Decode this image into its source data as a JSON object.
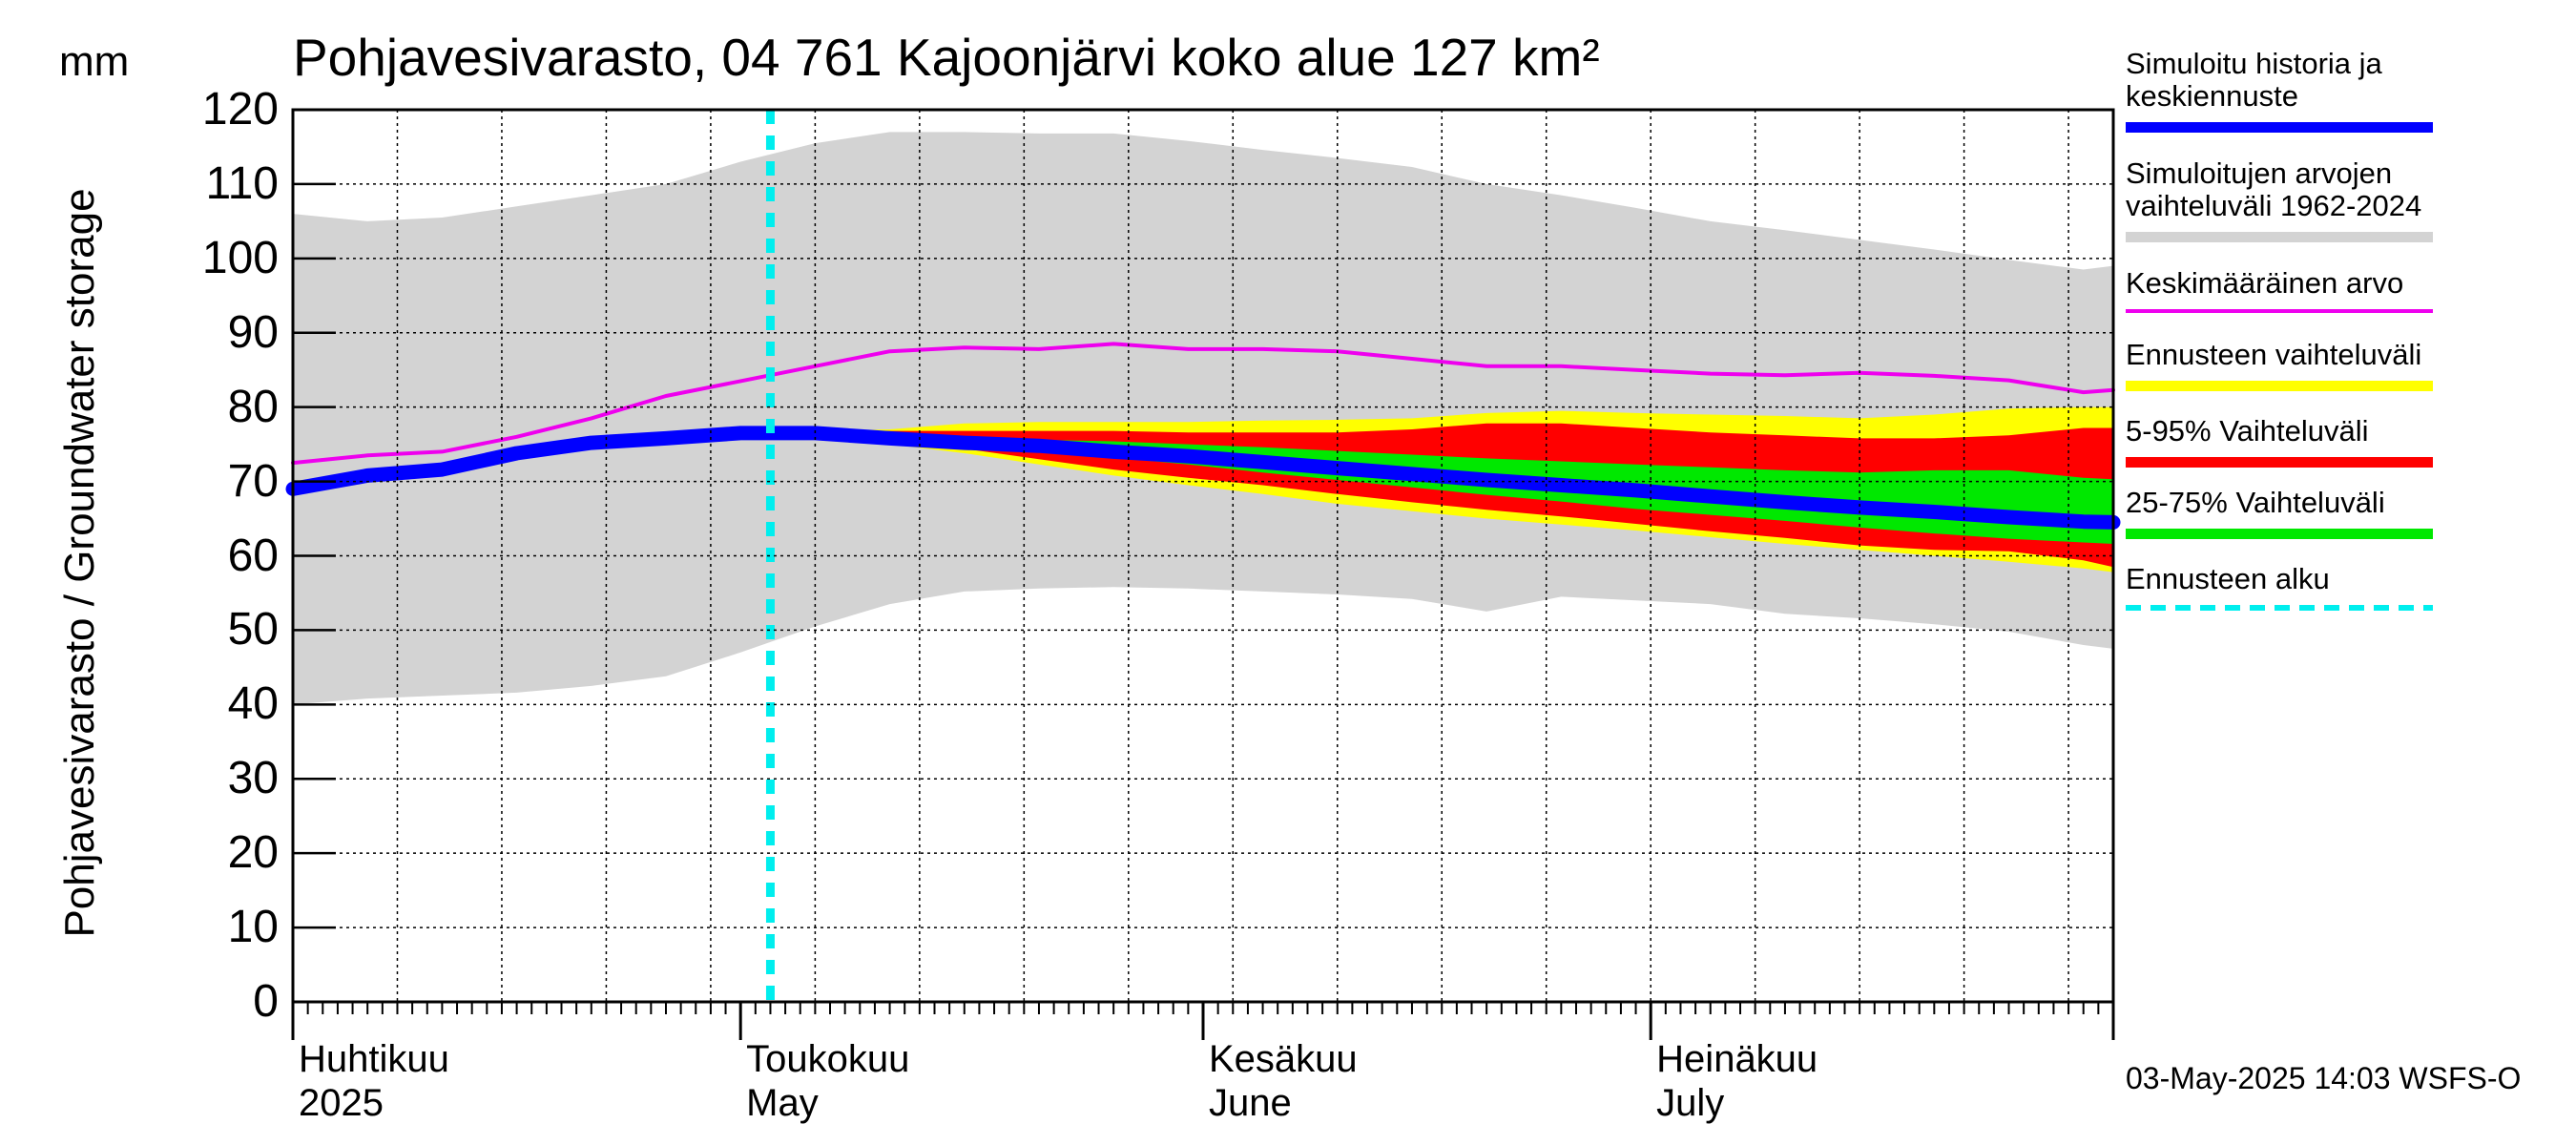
{
  "title": "Pohjavesivarasto, 04 761 Kajoonjärvi koko alue 127 km²",
  "unit": "mm",
  "timestamp": "03-May-2025 14:03 WSFS-O",
  "chart_data": {
    "type": "area",
    "ylabel": "Pohjavesivarasto / Groundwater storage",
    "ylim": [
      0,
      120
    ],
    "yticks": [
      0,
      10,
      20,
      30,
      40,
      50,
      60,
      70,
      80,
      90,
      100,
      110,
      120
    ],
    "xlim": [
      "2025-04-01",
      "2025-08-01"
    ],
    "grid": true,
    "legend_position": "right",
    "month_labels": [
      {
        "date": "2025-04-01",
        "line1": "Huhtikuu",
        "line2": "2025"
      },
      {
        "date": "2025-05-01",
        "line1": "Toukokuu",
        "line2": "May"
      },
      {
        "date": "2025-06-01",
        "line1": "Kesäkuu",
        "line2": "June"
      },
      {
        "date": "2025-07-01",
        "line1": "Heinäkuu",
        "line2": "July"
      }
    ],
    "forecast_start": "2025-05-03",
    "colors": {
      "history_range": "#d3d3d3",
      "forecast_range": "#ffff00",
      "p5_95": "#ff0000",
      "p25_75": "#00e800",
      "mean": "#ee00ee",
      "history_forecast": "#0000ff",
      "forecast_start": "#00eeee",
      "grid": "#000000"
    },
    "series": [
      {
        "name": "Simuloitu historia ja\nkeskiennuste",
        "style": "line",
        "color": "#0000ff",
        "x": [
          "2025-04-01",
          "2025-04-06",
          "2025-04-11",
          "2025-04-16",
          "2025-04-21",
          "2025-04-26",
          "2025-05-01",
          "2025-05-06",
          "2025-05-11",
          "2025-05-16",
          "2025-05-21",
          "2025-05-26",
          "2025-05-31",
          "2025-06-05",
          "2025-06-10",
          "2025-06-15",
          "2025-06-20",
          "2025-06-25",
          "2025-06-30",
          "2025-07-05",
          "2025-07-10",
          "2025-07-15",
          "2025-07-20",
          "2025-07-25",
          "2025-07-30",
          "2025-08-01"
        ],
        "y": [
          69,
          70.8,
          71.6,
          73.8,
          75.2,
          75.8,
          76.5,
          76.5,
          75.8,
          75.2,
          74.8,
          74,
          73.4,
          72.6,
          71.8,
          71,
          70.2,
          69.5,
          68.8,
          68,
          67.2,
          66.5,
          65.9,
          65.2,
          64.6,
          64.5
        ]
      },
      {
        "name": "Simuloitujen arvojen\nvaihteluväli 1962-2024",
        "style": "band",
        "color": "#d3d3d3",
        "x": [
          "2025-04-01",
          "2025-04-06",
          "2025-04-11",
          "2025-04-16",
          "2025-04-21",
          "2025-04-26",
          "2025-05-01",
          "2025-05-06",
          "2025-05-11",
          "2025-05-16",
          "2025-05-21",
          "2025-05-26",
          "2025-05-31",
          "2025-06-05",
          "2025-06-10",
          "2025-06-15",
          "2025-06-20",
          "2025-06-25",
          "2025-06-30",
          "2025-07-05",
          "2025-07-10",
          "2025-07-15",
          "2025-07-20",
          "2025-07-25",
          "2025-07-30",
          "2025-08-01"
        ],
        "lower": [
          40,
          40.8,
          41.2,
          41.6,
          42.5,
          43.8,
          47,
          50.5,
          53.5,
          55.2,
          55.6,
          55.8,
          55.6,
          55.2,
          54.8,
          54.2,
          52.5,
          54.5,
          54,
          53.5,
          52.2,
          51.6,
          50.8,
          49.8,
          48,
          47.5
        ],
        "upper": [
          106,
          105,
          105.5,
          107,
          108.5,
          110,
          113,
          115.5,
          117,
          117,
          116.8,
          116.8,
          115.8,
          114.6,
          113.5,
          112.3,
          110,
          108.5,
          106.8,
          105,
          103.8,
          102.5,
          101.2,
          99.8,
          98.5,
          99
        ]
      },
      {
        "name": "Keskimääräinen arvo",
        "style": "line",
        "color": "#ee00ee",
        "x": [
          "2025-04-01",
          "2025-04-06",
          "2025-04-11",
          "2025-04-16",
          "2025-04-21",
          "2025-04-26",
          "2025-05-01",
          "2025-05-06",
          "2025-05-11",
          "2025-05-16",
          "2025-05-21",
          "2025-05-26",
          "2025-05-31",
          "2025-06-05",
          "2025-06-10",
          "2025-06-15",
          "2025-06-20",
          "2025-06-25",
          "2025-06-30",
          "2025-07-05",
          "2025-07-10",
          "2025-07-15",
          "2025-07-20",
          "2025-07-25",
          "2025-07-30",
          "2025-08-01"
        ],
        "y": [
          72.5,
          73.5,
          74,
          76,
          78.5,
          81.5,
          83.5,
          85.5,
          87.5,
          88,
          87.8,
          88.5,
          87.8,
          87.8,
          87.5,
          86.5,
          85.5,
          85.5,
          85,
          84.5,
          84.3,
          84.6,
          84.2,
          83.6,
          82,
          82.3
        ]
      },
      {
        "name": "Ennusteen vaihteluväli",
        "style": "band",
        "color": "#ffff00",
        "x": [
          "2025-05-03",
          "2025-05-06",
          "2025-05-11",
          "2025-05-16",
          "2025-05-21",
          "2025-05-26",
          "2025-05-31",
          "2025-06-05",
          "2025-06-10",
          "2025-06-15",
          "2025-06-20",
          "2025-06-25",
          "2025-06-30",
          "2025-07-05",
          "2025-07-10",
          "2025-07-15",
          "2025-07-20",
          "2025-07-25",
          "2025-07-30",
          "2025-08-01"
        ],
        "lower": [
          76.5,
          76,
          75,
          73.8,
          72.3,
          70.8,
          69.5,
          68.3,
          67,
          66,
          65,
          64.2,
          63.4,
          62.5,
          61.6,
          60.8,
          60,
          59.2,
          58.3,
          57.8
        ],
        "upper": [
          76.5,
          76.8,
          77,
          77.8,
          78,
          78,
          78,
          78.2,
          78.3,
          78.5,
          79.2,
          79.5,
          79.2,
          79,
          78.8,
          78.5,
          79,
          79.8,
          80,
          80
        ]
      },
      {
        "name": "5-95% Vaihteluväli",
        "style": "band",
        "color": "#ff0000",
        "x": [
          "2025-05-03",
          "2025-05-06",
          "2025-05-11",
          "2025-05-16",
          "2025-05-21",
          "2025-05-26",
          "2025-05-31",
          "2025-06-05",
          "2025-06-10",
          "2025-06-15",
          "2025-06-20",
          "2025-06-25",
          "2025-06-30",
          "2025-07-05",
          "2025-07-10",
          "2025-07-15",
          "2025-07-20",
          "2025-07-25",
          "2025-07-30",
          "2025-08-01"
        ],
        "lower": [
          76.5,
          76.2,
          75.4,
          74.4,
          73,
          71.6,
          70.5,
          69.5,
          68.3,
          67.2,
          66.2,
          65.3,
          64.3,
          63.3,
          62.4,
          61.4,
          60.8,
          60.6,
          59.4,
          58.5
        ],
        "upper": [
          76.5,
          76.6,
          76.8,
          76.8,
          76.8,
          76.8,
          76.6,
          76.6,
          76.6,
          77,
          77.8,
          77.8,
          77.2,
          76.6,
          76.2,
          75.8,
          75.8,
          76.2,
          77.2,
          77.2
        ]
      },
      {
        "name": "25-75% Vaihteluväli",
        "style": "band",
        "color": "#00e800",
        "x": [
          "2025-05-03",
          "2025-05-06",
          "2025-05-11",
          "2025-05-16",
          "2025-05-21",
          "2025-05-26",
          "2025-05-31",
          "2025-06-05",
          "2025-06-10",
          "2025-06-15",
          "2025-06-20",
          "2025-06-25",
          "2025-06-30",
          "2025-07-05",
          "2025-07-10",
          "2025-07-15",
          "2025-07-20",
          "2025-07-25",
          "2025-07-30",
          "2025-08-01"
        ],
        "lower": [
          76.5,
          76.4,
          75.7,
          75,
          74.1,
          73.2,
          72.3,
          71.2,
          70.2,
          69.2,
          68.2,
          67.3,
          66.3,
          65.5,
          64.7,
          63.8,
          63,
          62.3,
          61.8,
          61.6
        ],
        "upper": [
          76.5,
          76.6,
          76.2,
          75.9,
          75.6,
          75.4,
          75,
          74.6,
          74.1,
          73.6,
          73.1,
          72.7,
          72.3,
          71.9,
          71.5,
          71.2,
          71.5,
          71.5,
          70.5,
          70.3
        ]
      },
      {
        "name": "Ennusteen alku",
        "style": "vline",
        "color": "#00eeee",
        "x": [
          "2025-05-03"
        ]
      }
    ],
    "legend_order": [
      0,
      1,
      2,
      3,
      4,
      5,
      6
    ]
  }
}
